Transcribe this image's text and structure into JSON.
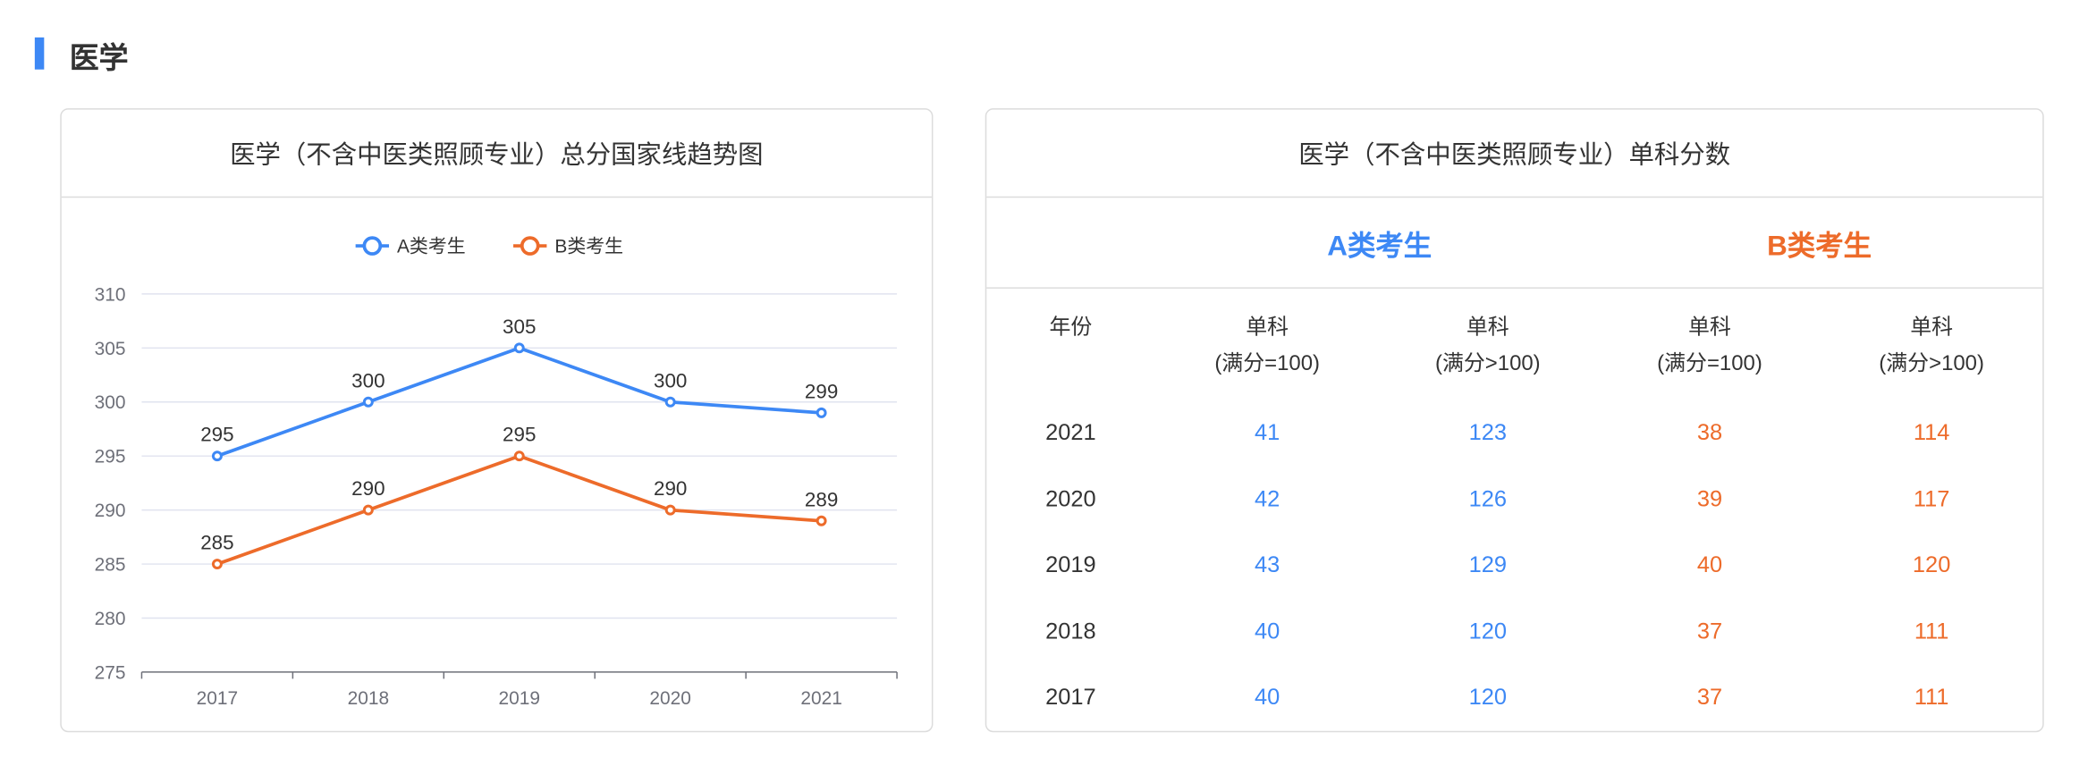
{
  "section": {
    "title": "医学"
  },
  "colors": {
    "accent": "#3d88f5",
    "series_a": "#3d88f5",
    "series_b": "#ed6b2a"
  },
  "chart_card": {
    "title": "医学（不含中医类照顾专业）总分国家线趋势图"
  },
  "chart_data": {
    "type": "line",
    "categories": [
      "2017",
      "2018",
      "2019",
      "2020",
      "2021"
    ],
    "series": [
      {
        "name": "A类考生",
        "values": [
          295,
          300,
          305,
          300,
          299
        ]
      },
      {
        "name": "B类考生",
        "values": [
          285,
          290,
          295,
          290,
          289
        ]
      }
    ],
    "ylim": [
      275,
      310
    ],
    "yticks": [
      "275",
      "280",
      "285",
      "290",
      "295",
      "300",
      "305",
      "310"
    ],
    "grid": true,
    "legend": "top",
    "data_labels": true
  },
  "table_card": {
    "title": "医学（不含中医类照顾专业）单科分数",
    "group_a": "A类考生",
    "group_b": "B类考生",
    "headers": [
      {
        "l1": "年份",
        "l2": ""
      },
      {
        "l1": "单科",
        "l2": "(满分=100)"
      },
      {
        "l1": "单科",
        "l2": "(满分>100)"
      },
      {
        "l1": "单科",
        "l2": "(满分=100)"
      },
      {
        "l1": "单科",
        "l2": "(满分>100)"
      }
    ],
    "rows": [
      [
        "2021",
        "41",
        "123",
        "38",
        "114"
      ],
      [
        "2020",
        "42",
        "126",
        "39",
        "117"
      ],
      [
        "2019",
        "43",
        "129",
        "40",
        "120"
      ],
      [
        "2018",
        "40",
        "120",
        "37",
        "111"
      ],
      [
        "2017",
        "40",
        "120",
        "37",
        "111"
      ]
    ]
  }
}
